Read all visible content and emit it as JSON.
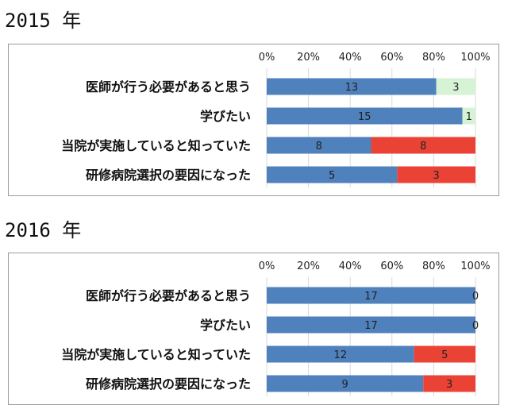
{
  "chart_data": [
    {
      "type": "bar",
      "stacked": "percent",
      "title": "2015 年",
      "categories": [
        "医師が行う必要があると思う",
        "学びたい",
        "当院が実施していると知っていた",
        "研修病院選択の要因になった"
      ],
      "series": [
        {
          "color": "#4f81bd",
          "values": [
            13,
            15,
            8,
            5
          ]
        },
        {
          "color": [
            "#d7f3d6",
            "#d7f3d6",
            "#ea4335",
            "#ea4335"
          ],
          "values": [
            3,
            1,
            8,
            3
          ]
        }
      ],
      "x_ticks": [
        "0%",
        "20%",
        "40%",
        "60%",
        "80%",
        "100%"
      ],
      "xlim": [
        0,
        100
      ],
      "grid": true
    },
    {
      "type": "bar",
      "stacked": "percent",
      "title": "2016 年",
      "categories": [
        "医師が行う必要があると思う",
        "学びたい",
        "当院が実施していると知っていた",
        "研修病院選択の要因になった"
      ],
      "series": [
        {
          "color": "#4f81bd",
          "values": [
            17,
            17,
            12,
            9
          ]
        },
        {
          "color": [
            "#d7f3d6",
            "#d7f3d6",
            "#ea4335",
            "#ea4335"
          ],
          "values": [
            0,
            0,
            5,
            3
          ]
        }
      ],
      "x_ticks": [
        "0%",
        "20%",
        "40%",
        "60%",
        "80%",
        "100%"
      ],
      "xlim": [
        0,
        100
      ],
      "grid": true
    }
  ]
}
